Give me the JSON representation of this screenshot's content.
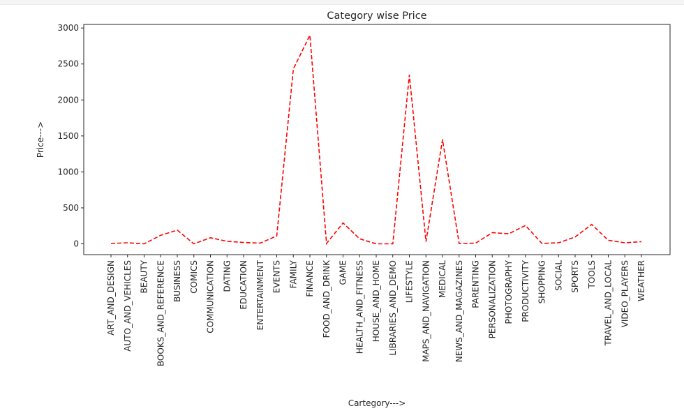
{
  "chart_data": {
    "type": "line",
    "title": "Category wise Price",
    "xlabel": "Cartegory--->",
    "ylabel": "Price--->",
    "ylim": [
      -150,
      3050
    ],
    "yticks": [
      0,
      500,
      1000,
      1500,
      2000,
      2500,
      3000
    ],
    "grid": false,
    "line_color": "#ff0000",
    "line_style": "dashed",
    "categories": [
      "ART_AND_DESIGN",
      "AUTO_AND_VEHICLES",
      "BEAUTY",
      "BOOKS_AND_REFERENCE",
      "BUSINESS",
      "COMICS",
      "COMMUNICATION",
      "DATING",
      "EDUCATION",
      "ENTERTAINMENT",
      "EVENTS",
      "FAMILY",
      "FINANCE",
      "FOOD_AND_DRINK",
      "GAME",
      "HEALTH_AND_FITNESS",
      "HOUSE_AND_HOME",
      "LIBRARIES_AND_DEMO",
      "LIFESTYLE",
      "MAPS_AND_NAVIGATION",
      "MEDICAL",
      "NEWS_AND_MAGAZINES",
      "PARENTING",
      "PERSONALIZATION",
      "PHOTOGRAPHY",
      "PRODUCTIVITY",
      "SHOPPING",
      "SOCIAL",
      "SPORTS",
      "TOOLS",
      "TRAVEL_AND_LOCAL",
      "VIDEO_PLAYERS",
      "WEATHER"
    ],
    "series": [
      {
        "values": [
          5,
          15,
          0,
          120,
          190,
          0,
          85,
          35,
          20,
          10,
          110,
          2430,
          2900,
          5,
          290,
          70,
          0,
          0,
          2350,
          30,
          1450,
          5,
          10,
          155,
          140,
          255,
          5,
          15,
          95,
          270,
          50,
          15,
          30
        ]
      }
    ]
  }
}
